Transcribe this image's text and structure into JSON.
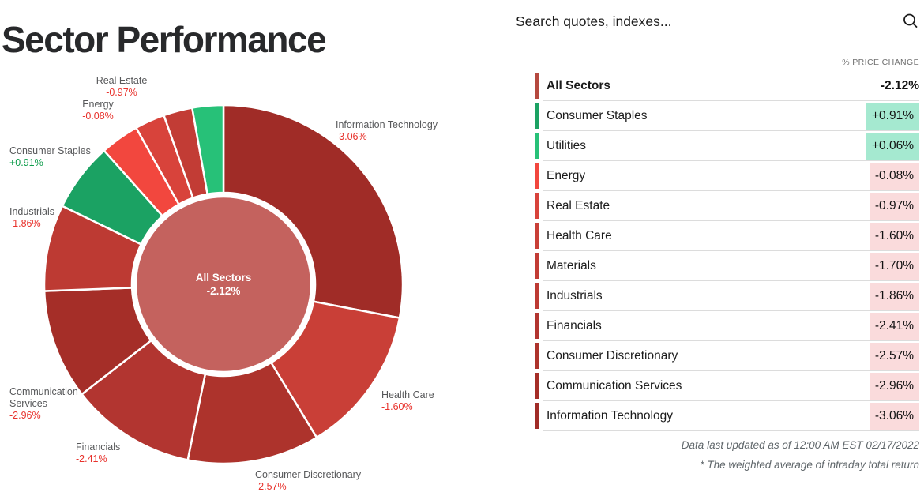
{
  "page_title": "Sector Performance",
  "search": {
    "placeholder": "Search quotes, indexes...",
    "icon": "magnifier-icon"
  },
  "table": {
    "column_header": "% PRICE CHANGE",
    "all_sectors_row": {
      "label": "All Sectors",
      "display": "-2.12%",
      "change": -2.12,
      "bar_color": "#b5493f"
    },
    "footnotes": [
      "Data last updated as of 12:00 AM EST 02/17/2022",
      "* The weighted average of intraday total return"
    ]
  },
  "chart_data": {
    "type": "pie",
    "subtype": "donut",
    "title": "Sector Performance",
    "order": "clockwise from 12 o'clock, slice size = sector index weight",
    "center": {
      "label": "All Sectors",
      "display": "-2.12%",
      "change": -2.12,
      "color": "#c4625e"
    },
    "sectors": [
      {
        "id": "information-technology",
        "label": "Information Technology",
        "change": -3.06,
        "display": "-3.06%",
        "weight": 28.0,
        "color": "#a02c27",
        "chart_label": true
      },
      {
        "id": "health-care",
        "label": "Health Care",
        "change": -1.6,
        "display": "-1.60%",
        "weight": 13.3,
        "color": "#c93f37",
        "chart_label": true
      },
      {
        "id": "consumer-discretionary",
        "label": "Consumer Discretionary",
        "change": -2.57,
        "display": "-2.57%",
        "weight": 11.9,
        "color": "#ad332c",
        "chart_label": true
      },
      {
        "id": "financials",
        "label": "Financials",
        "change": -2.41,
        "display": "-2.41%",
        "weight": 11.3,
        "color": "#b23530",
        "chart_label": true
      },
      {
        "id": "communication-services",
        "label": "Communication Services",
        "change": -2.96,
        "display": "-2.96%",
        "weight": 9.9,
        "color": "#a52e28",
        "chart_label": true
      },
      {
        "id": "industrials",
        "label": "Industrials",
        "change": -1.86,
        "display": "-1.86%",
        "weight": 7.8,
        "color": "#bd3a33",
        "chart_label": true
      },
      {
        "id": "consumer-staples",
        "label": "Consumer Staples",
        "change": 0.91,
        "display": "+0.91%",
        "weight": 6.2,
        "color": "#1ba263",
        "chart_label": true
      },
      {
        "id": "energy",
        "label": "Energy",
        "change": -0.08,
        "display": "-0.08%",
        "weight": 3.5,
        "color": "#f2473e",
        "chart_label": true
      },
      {
        "id": "real-estate",
        "label": "Real Estate",
        "change": -0.97,
        "display": "-0.97%",
        "weight": 2.7,
        "color": "#d8433b",
        "chart_label": true
      },
      {
        "id": "materials",
        "label": "Materials",
        "change": -1.7,
        "display": "-1.70%",
        "weight": 2.6,
        "color": "#c23c35",
        "chart_label": false
      },
      {
        "id": "utilities",
        "label": "Utilities",
        "change": 0.06,
        "display": "+0.06%",
        "weight": 2.8,
        "color": "#27c178",
        "chart_label": false
      }
    ]
  },
  "colors": {
    "positive_chip_bg": "#a5e9d0",
    "negative_chip_bg": "#fadbdc",
    "positive_text": "#0f9d4c",
    "negative_text": "#e8322c",
    "row_divider": "#dcdcdc"
  }
}
